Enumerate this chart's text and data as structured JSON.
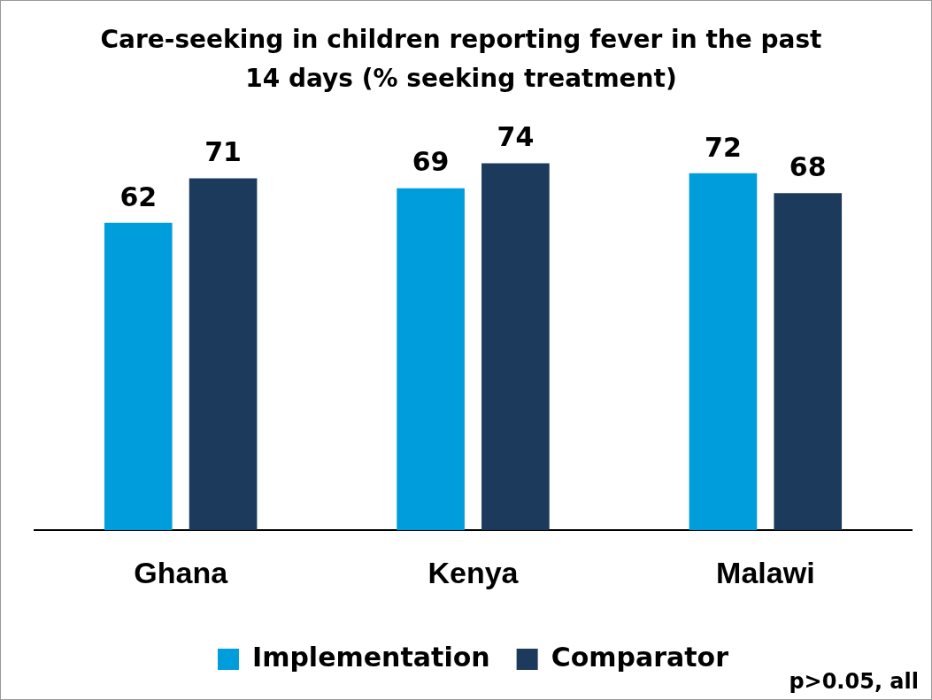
{
  "chart_data": {
    "type": "bar",
    "title": "Care-seeking in children reporting fever in the past 14 days (% seeking treatment)",
    "categories": [
      "Ghana",
      "Kenya",
      "Malawi"
    ],
    "series": [
      {
        "name": "Implementation",
        "color": "#009ddc",
        "values": [
          62,
          69,
          72
        ]
      },
      {
        "name": "Comparator",
        "color": "#1b3a5c",
        "values": [
          71,
          74,
          68
        ]
      }
    ],
    "data_labels": true,
    "grid": false,
    "legend": "bottom",
    "annotations": [
      "p>0.05, all"
    ]
  }
}
